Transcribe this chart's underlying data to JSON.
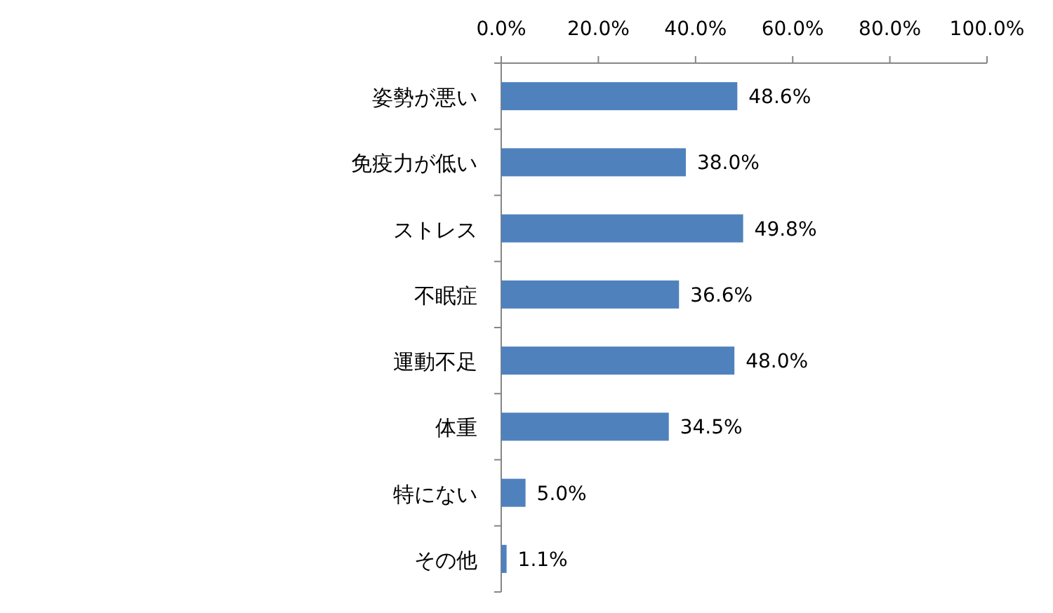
{
  "chart_data": {
    "type": "bar",
    "orientation": "horizontal",
    "categories": [
      "姿勢が悪い",
      "免疫力が低い",
      "ストレス",
      "不眠症",
      "運動不足",
      "体重",
      "特にない",
      "その他"
    ],
    "values": [
      48.6,
      38.0,
      49.8,
      36.6,
      48.0,
      34.5,
      5.0,
      1.1
    ],
    "value_labels": [
      "48.6%",
      "38.0%",
      "49.8%",
      "36.6%",
      "48.0%",
      "34.5%",
      "5.0%",
      "1.1%"
    ],
    "color": "#4f81bd",
    "xlim": [
      0,
      100
    ],
    "xticks": [
      {
        "value": 0,
        "label": "0.0%"
      },
      {
        "value": 20,
        "label": "20.0%"
      },
      {
        "value": 40,
        "label": "40.0%"
      },
      {
        "value": 60,
        "label": "60.0%"
      },
      {
        "value": 80,
        "label": "80.0%"
      },
      {
        "value": 100,
        "label": "100.0%"
      }
    ],
    "grid": false
  }
}
